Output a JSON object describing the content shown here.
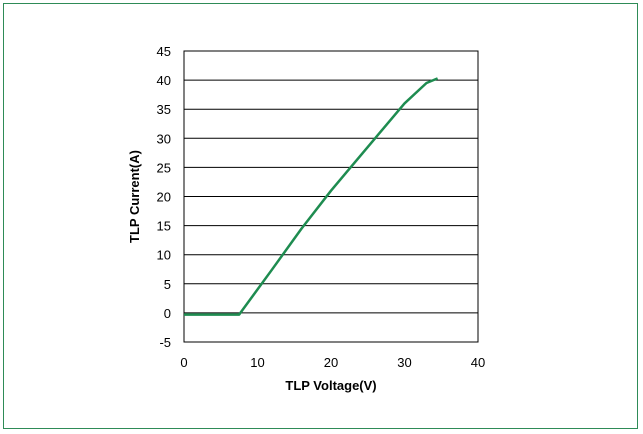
{
  "chart_data": {
    "type": "line",
    "title": "",
    "xlabel": "TLP Voltage(V)",
    "ylabel": "TLP Current(A)",
    "xlim": [
      0,
      40
    ],
    "ylim": [
      -5,
      45
    ],
    "xticks": [
      0,
      10,
      20,
      30,
      40
    ],
    "yticks": [
      -5,
      0,
      5,
      10,
      15,
      20,
      25,
      30,
      35,
      40,
      45
    ],
    "grid": "horizontal",
    "legend": "none",
    "colors": {
      "line": "#1e8c50",
      "frame": "#2e8b57",
      "grid": "#000000"
    },
    "series": [
      {
        "x": [
          0,
          7.5,
          12,
          16,
          20,
          22,
          26,
          30,
          33,
          34.5
        ],
        "y": [
          -0.3,
          -0.3,
          7.5,
          14.5,
          21,
          24,
          30,
          36,
          39.5,
          40.3
        ]
      }
    ]
  }
}
